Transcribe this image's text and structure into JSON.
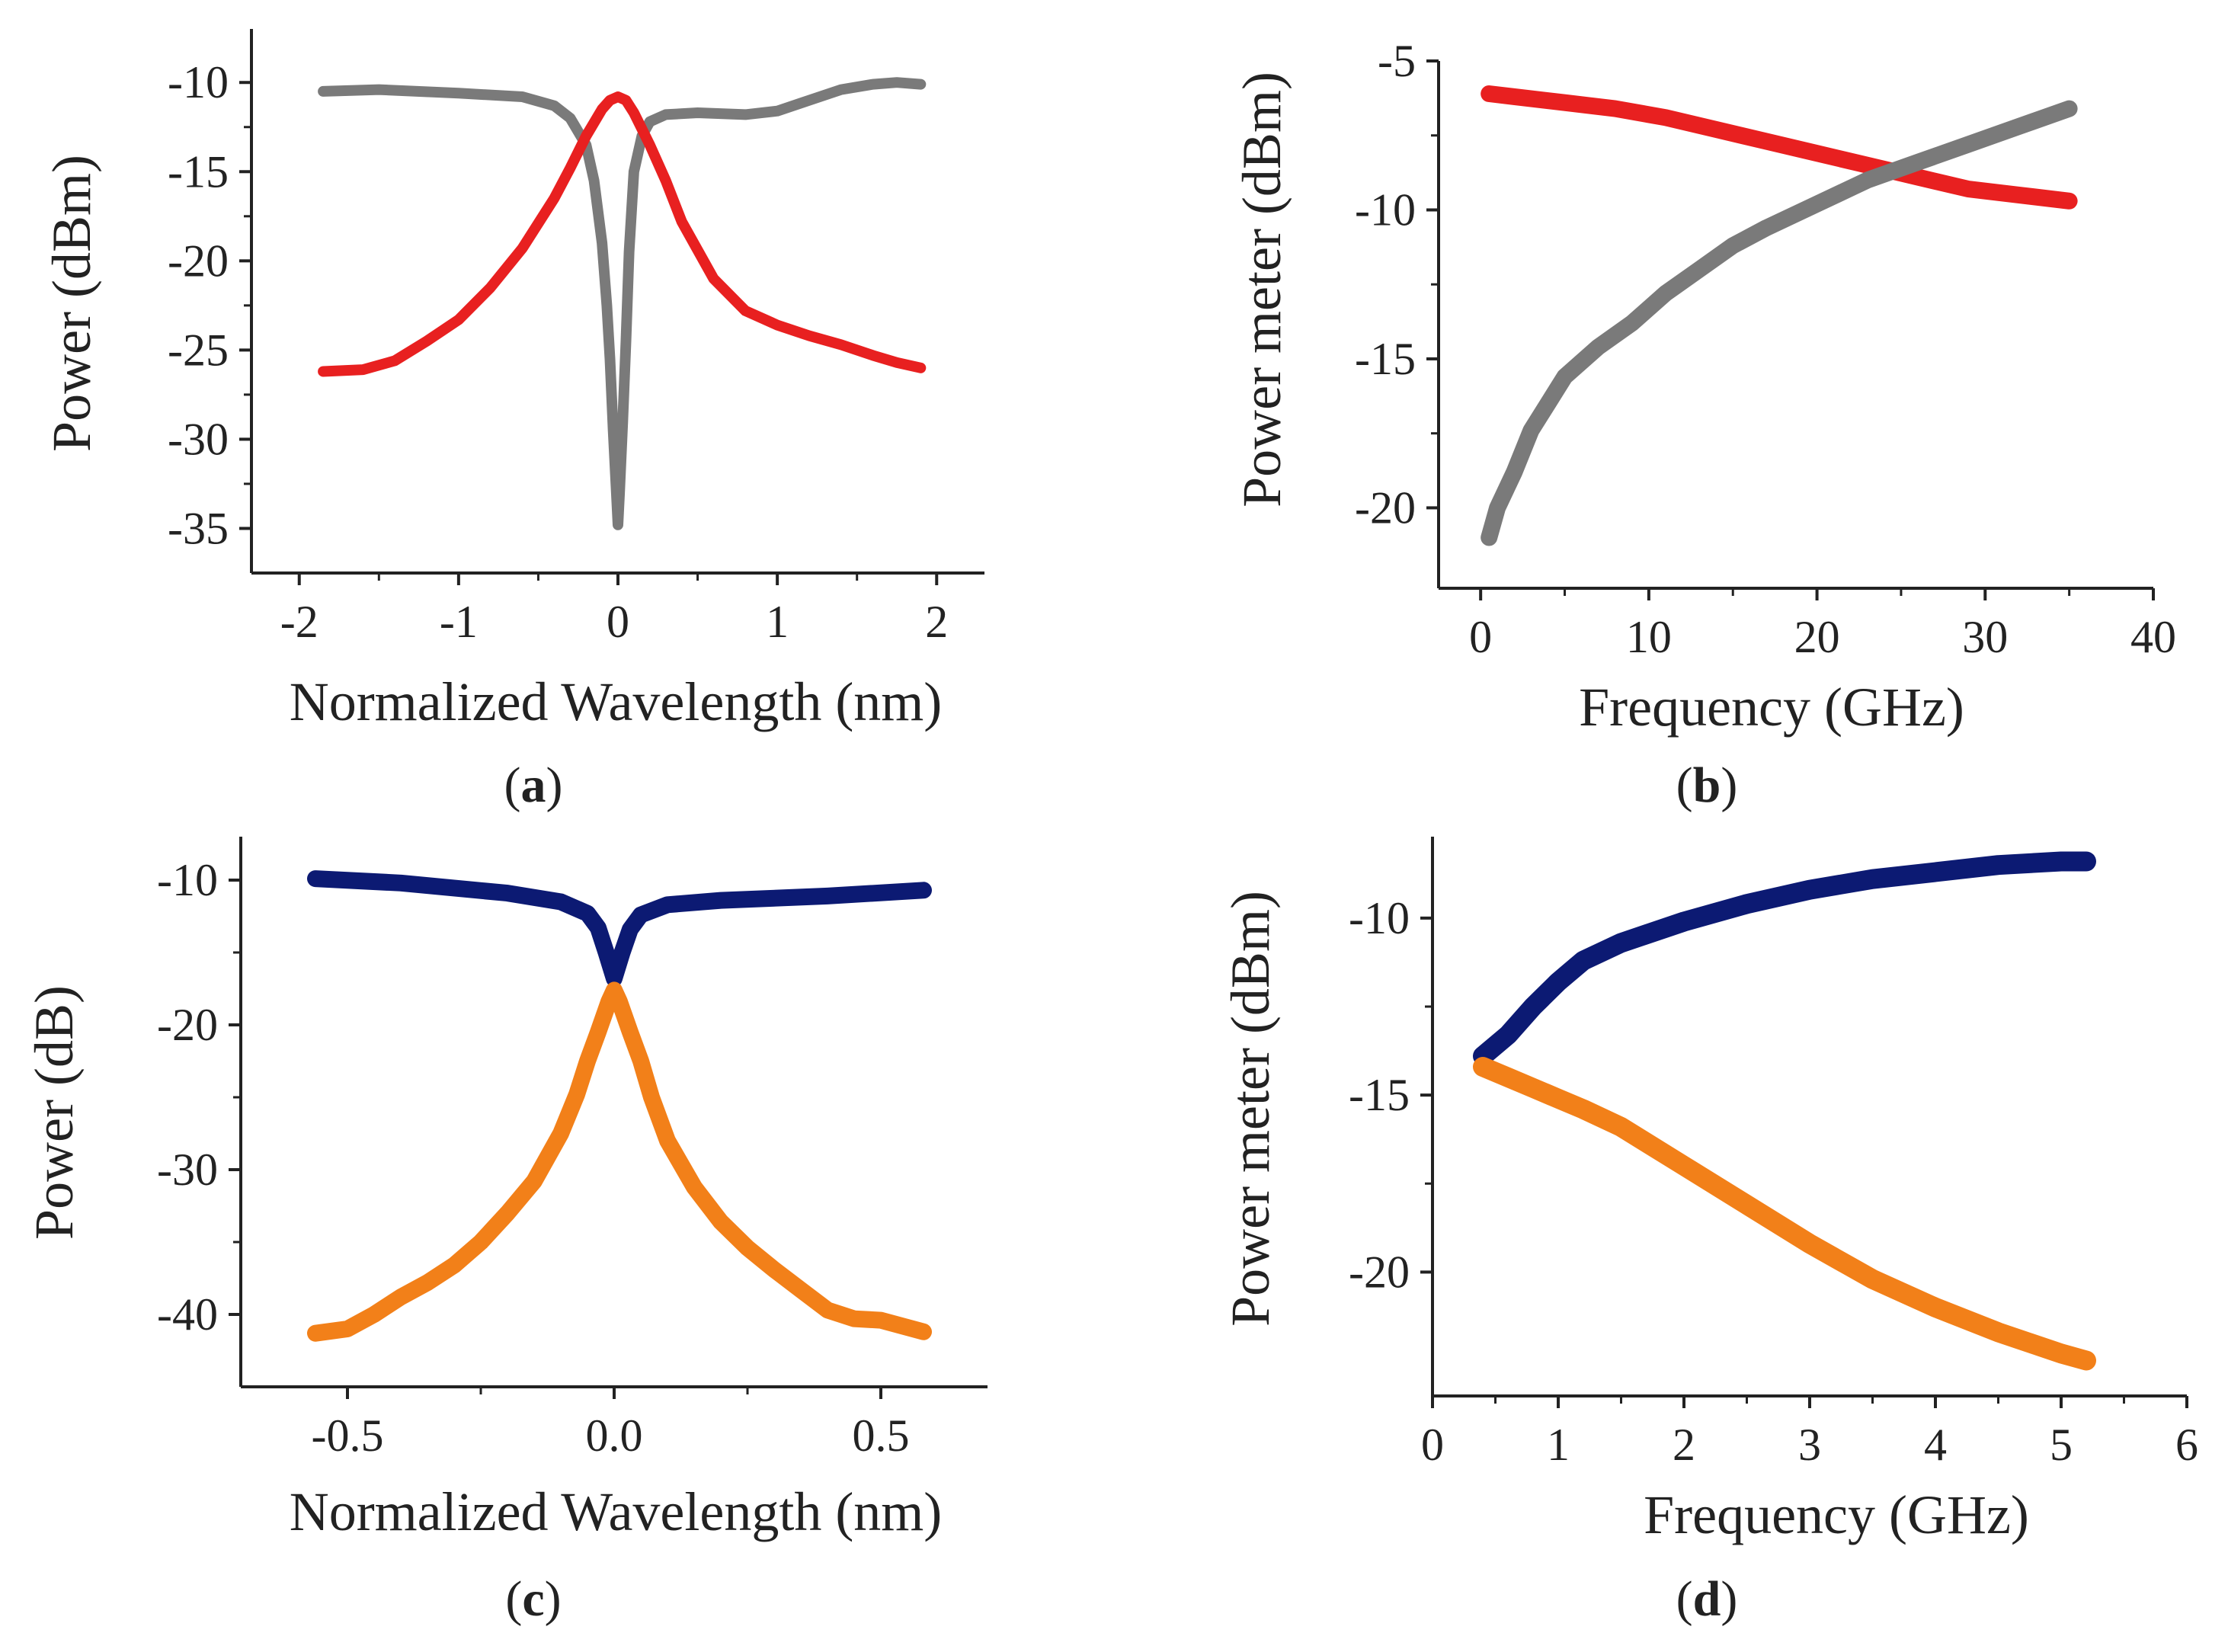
{
  "chart_data": [
    {
      "id": "a",
      "panel_label": "a",
      "type": "line",
      "xlabel": "Normalized Wavelength (nm)",
      "ylabel": "Power (dBm)",
      "xlim": [
        -2.3,
        2.3
      ],
      "ylim": [
        -37.5,
        -7
      ],
      "xticks": [
        -2,
        -1,
        0,
        1,
        2
      ],
      "xtick_labels": [
        "-2",
        "-1",
        "0",
        "1",
        "2"
      ],
      "yticks": [
        -10,
        -15,
        -20,
        -25,
        -30,
        -35
      ],
      "ytick_labels": [
        "-10",
        "-15",
        "-20",
        "-25",
        "-30",
        "-35"
      ],
      "series": [
        {
          "name": "gray",
          "color": "#7a7a7a",
          "x": [
            -1.85,
            -1.5,
            -1.0,
            -0.6,
            -0.4,
            -0.3,
            -0.2,
            -0.15,
            -0.1,
            -0.07,
            -0.05,
            -0.03,
            -0.01,
            0.0,
            0.01,
            0.03,
            0.05,
            0.07,
            0.1,
            0.15,
            0.2,
            0.3,
            0.5,
            0.8,
            1.0,
            1.2,
            1.4,
            1.6,
            1.75,
            1.9
          ],
          "y": [
            -10.5,
            -10.4,
            -10.6,
            -10.8,
            -11.3,
            -12.0,
            -13.5,
            -15.5,
            -19.0,
            -22.5,
            -25.5,
            -29.5,
            -33.0,
            -34.8,
            -33.0,
            -29.0,
            -24.5,
            -19.5,
            -15.0,
            -13.0,
            -12.2,
            -11.8,
            -11.7,
            -11.8,
            -11.6,
            -11.0,
            -10.4,
            -10.1,
            -10.0,
            -10.1
          ]
        },
        {
          "name": "red",
          "color": "#e82020",
          "x": [
            -1.85,
            -1.6,
            -1.4,
            -1.2,
            -1.0,
            -0.8,
            -0.6,
            -0.4,
            -0.3,
            -0.2,
            -0.1,
            -0.05,
            0.0,
            0.05,
            0.1,
            0.2,
            0.3,
            0.4,
            0.6,
            0.8,
            1.0,
            1.2,
            1.4,
            1.6,
            1.75,
            1.9
          ],
          "y": [
            -26.2,
            -26.1,
            -25.6,
            -24.5,
            -23.3,
            -21.5,
            -19.3,
            -16.5,
            -14.8,
            -13.0,
            -11.5,
            -11.0,
            -10.8,
            -11.0,
            -11.7,
            -13.5,
            -15.5,
            -17.8,
            -21.0,
            -22.8,
            -23.6,
            -24.2,
            -24.7,
            -25.3,
            -25.7,
            -26.0
          ]
        }
      ]
    },
    {
      "id": "b",
      "panel_label": "b",
      "type": "line",
      "xlabel": "Frequency (GHz)",
      "ylabel": "Power meter (dBm)",
      "xlim": [
        -2.5,
        40
      ],
      "ylim": [
        -22.7,
        -5
      ],
      "xticks": [
        0,
        10,
        20,
        30,
        40
      ],
      "xtick_labels": [
        "0",
        "10",
        "20",
        "30",
        "40"
      ],
      "yticks": [
        -5,
        -10,
        -15,
        -20
      ],
      "ytick_labels": [
        "-5",
        "-10",
        "-15",
        "-20"
      ],
      "series": [
        {
          "name": "red",
          "color": "#e82020",
          "x": [
            0.5,
            2,
            5,
            8,
            11,
            14,
            17,
            20,
            23,
            26,
            29,
            32,
            35
          ],
          "y": [
            -6.1,
            -6.2,
            -6.4,
            -6.6,
            -6.9,
            -7.3,
            -7.7,
            -8.1,
            -8.5,
            -8.9,
            -9.3,
            -9.5,
            -9.7
          ]
        },
        {
          "name": "gray",
          "color": "#7a7a7a",
          "x": [
            0.5,
            1,
            2,
            3,
            4,
            5,
            7,
            9,
            11,
            13,
            15,
            17,
            20,
            23,
            26,
            29,
            32,
            35
          ],
          "y": [
            -21.0,
            -20.0,
            -18.8,
            -17.4,
            -16.5,
            -15.6,
            -14.6,
            -13.8,
            -12.8,
            -12.0,
            -11.2,
            -10.6,
            -9.8,
            -9.0,
            -8.4,
            -7.8,
            -7.2,
            -6.6
          ]
        }
      ]
    },
    {
      "id": "c",
      "panel_label": "c",
      "type": "line",
      "xlabel": "Normalized Wavelength (nm)",
      "ylabel": "Power (dB)",
      "xlim": [
        -0.7,
        0.7
      ],
      "ylim": [
        -45,
        -7
      ],
      "xticks": [
        -0.5,
        0.0,
        0.5
      ],
      "xtick_labels": [
        "-0.5",
        "0.0",
        "0.5"
      ],
      "yticks": [
        -10,
        -20,
        -30,
        -40
      ],
      "ytick_labels": [
        "-10",
        "-20",
        "-30",
        "-40"
      ],
      "series": [
        {
          "name": "navy",
          "color": "#0c1a73",
          "x": [
            -0.56,
            -0.4,
            -0.2,
            -0.1,
            -0.05,
            -0.03,
            -0.015,
            0.0,
            0.015,
            0.03,
            0.05,
            0.1,
            0.2,
            0.4,
            0.58
          ],
          "y": [
            -9.9,
            -10.2,
            -10.9,
            -11.5,
            -12.3,
            -13.3,
            -15.0,
            -16.8,
            -15.0,
            -13.4,
            -12.4,
            -11.7,
            -11.4,
            -11.1,
            -10.7
          ]
        },
        {
          "name": "orange",
          "color": "#f28019",
          "x": [
            -0.56,
            -0.5,
            -0.45,
            -0.4,
            -0.35,
            -0.3,
            -0.25,
            -0.2,
            -0.15,
            -0.1,
            -0.07,
            -0.05,
            -0.03,
            -0.01,
            0.0,
            0.01,
            0.03,
            0.05,
            0.07,
            0.1,
            0.15,
            0.2,
            0.25,
            0.3,
            0.35,
            0.4,
            0.45,
            0.5,
            0.58
          ],
          "y": [
            -41.3,
            -41.0,
            -40.0,
            -38.8,
            -37.8,
            -36.6,
            -35.0,
            -33.0,
            -30.8,
            -27.5,
            -24.8,
            -22.5,
            -20.5,
            -18.4,
            -17.6,
            -18.4,
            -20.5,
            -22.5,
            -25.0,
            -28.0,
            -31.2,
            -33.6,
            -35.4,
            -36.9,
            -38.3,
            -39.7,
            -40.3,
            -40.4,
            -41.2
          ]
        }
      ]
    },
    {
      "id": "d",
      "panel_label": "d",
      "type": "line",
      "xlabel": "Frequency (GHz)",
      "ylabel": "Power meter (dBm)",
      "xlim": [
        0,
        6
      ],
      "ylim": [
        -23.5,
        -7.7
      ],
      "xticks": [
        0,
        1,
        2,
        3,
        4,
        5,
        6
      ],
      "xtick_labels": [
        "0",
        "1",
        "2",
        "3",
        "4",
        "5",
        "6"
      ],
      "yticks": [
        -10,
        -15,
        -20
      ],
      "ytick_labels": [
        "-10",
        "-15",
        "-20"
      ],
      "series": [
        {
          "name": "navy",
          "color": "#0c1a73",
          "x": [
            0.4,
            0.6,
            0.8,
            1.0,
            1.2,
            1.5,
            2.0,
            2.5,
            3.0,
            3.5,
            4.0,
            4.5,
            5.0,
            5.2
          ],
          "y": [
            -13.9,
            -13.3,
            -12.5,
            -11.8,
            -11.2,
            -10.7,
            -10.1,
            -9.6,
            -9.2,
            -8.9,
            -8.7,
            -8.5,
            -8.4,
            -8.4
          ]
        },
        {
          "name": "orange",
          "color": "#f28019",
          "x": [
            0.4,
            0.6,
            0.8,
            1.0,
            1.2,
            1.5,
            2.0,
            2.5,
            3.0,
            3.5,
            4.0,
            4.5,
            5.0,
            5.2
          ],
          "y": [
            -14.2,
            -14.5,
            -14.8,
            -15.1,
            -15.4,
            -15.9,
            -17.0,
            -18.1,
            -19.2,
            -20.2,
            -21.0,
            -21.7,
            -22.3,
            -22.5
          ]
        }
      ]
    }
  ]
}
